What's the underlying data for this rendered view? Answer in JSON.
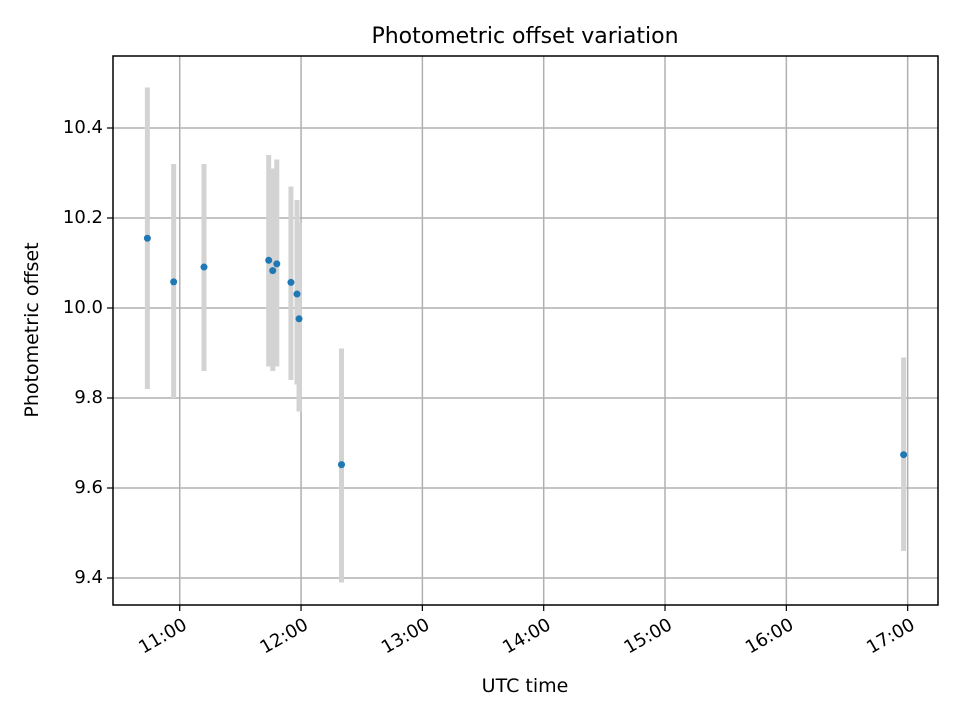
{
  "chart_data": {
    "type": "scatter",
    "title": "Photometric offset variation",
    "xlabel": "UTC time",
    "ylabel": "Photometric offset",
    "xlim": [
      "10:27",
      "17:15"
    ],
    "ylim": [
      9.34,
      10.56
    ],
    "xticks": [
      "11:00",
      "12:00",
      "13:00",
      "14:00",
      "15:00",
      "16:00",
      "17:00"
    ],
    "yticks": [
      9.4,
      9.6,
      9.8,
      10.0,
      10.2,
      10.4
    ],
    "grid": true,
    "colors": {
      "marker": "#1f77b4",
      "errorbar": "#d3d3d3"
    },
    "points": [
      {
        "x": "10:44",
        "y": 10.155,
        "ylow": 9.82,
        "yhigh": 10.49
      },
      {
        "x": "10:57",
        "y": 10.058,
        "ylow": 9.8,
        "yhigh": 10.32
      },
      {
        "x": "11:12",
        "y": 10.091,
        "ylow": 9.86,
        "yhigh": 10.32
      },
      {
        "x": "11:44",
        "y": 10.106,
        "ylow": 9.87,
        "yhigh": 10.34
      },
      {
        "x": "11:46",
        "y": 10.083,
        "ylow": 9.86,
        "yhigh": 10.31
      },
      {
        "x": "11:48",
        "y": 10.098,
        "ylow": 9.87,
        "yhigh": 10.33
      },
      {
        "x": "11:55",
        "y": 10.057,
        "ylow": 9.84,
        "yhigh": 10.27
      },
      {
        "x": "11:58",
        "y": 10.031,
        "ylow": 9.83,
        "yhigh": 10.24
      },
      {
        "x": "11:59",
        "y": 9.976,
        "ylow": 9.77,
        "yhigh": 10.19
      },
      {
        "x": "12:20",
        "y": 9.652,
        "ylow": 9.39,
        "yhigh": 9.91
      },
      {
        "x": "16:58",
        "y": 9.674,
        "ylow": 9.46,
        "yhigh": 9.89
      }
    ]
  }
}
